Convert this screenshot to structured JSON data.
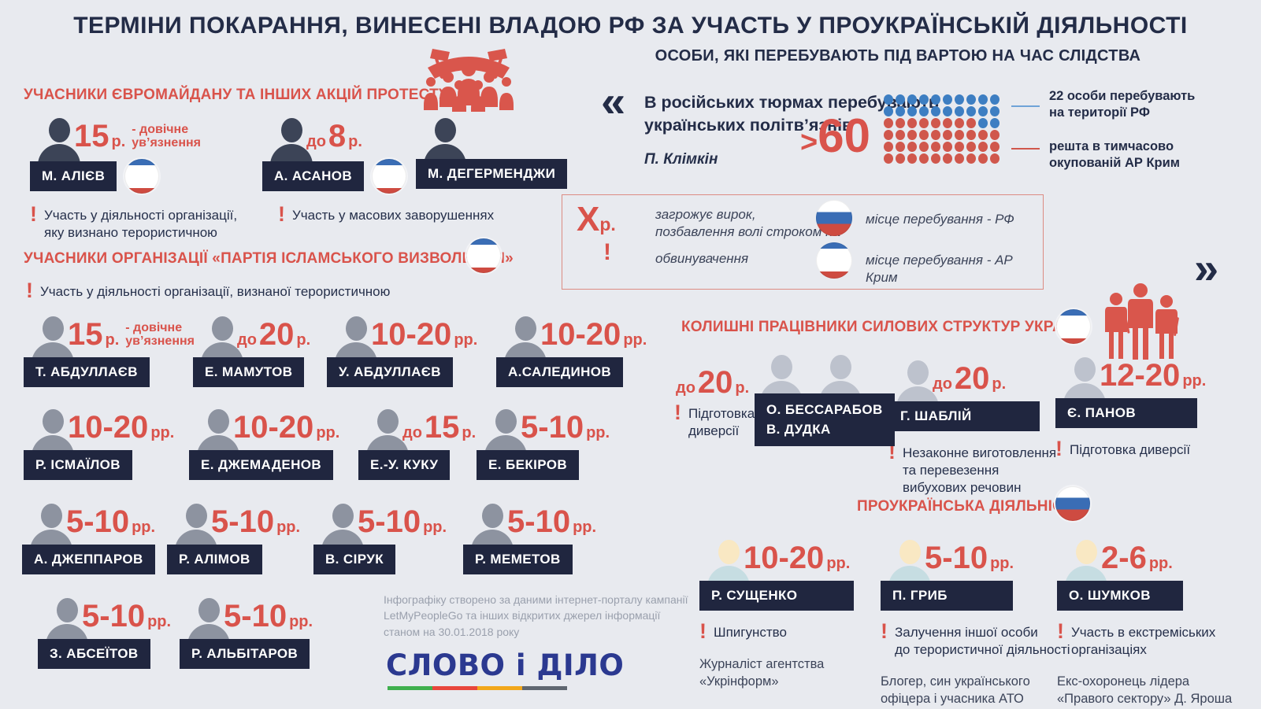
{
  "page": {
    "title": "ТЕРМІНИ ПОКАРАННЯ, ВИНЕСЕНІ ВЛАДОЮ РФ ЗА УЧАСТЬ У ПРОУКРАЇНСЬКІЙ ДІЯЛЬНОСТІ",
    "subtitle": "ОСОБИ, ЯКІ ПЕРЕБУВАЮТЬ ПІД ВАРТОЮ НА ЧАС СЛІДСТВА"
  },
  "colors": {
    "background": "#e8eaef",
    "navy": "#232c47",
    "plate": "#20263f",
    "red": "#d9534b",
    "dot_blue": "#3d7ec2",
    "dot_red": "#d0574c",
    "logo_blue": "#2b3990"
  },
  "quote": {
    "open_mark": "«",
    "close_mark": "»",
    "text": "В російських тюрмах перебувають\nукраїнських політв’язнів",
    "author": "П. Клімкін",
    "number_gt": ">",
    "number": "60",
    "waffle_rows": [
      "bbbbbbbbbb",
      "bbbbbbbbbb",
      "rrrrrrrrbb",
      "rrrrrrrrrr",
      "rrrrrrrrrr",
      "rrrrrrrrrr"
    ],
    "label_rf": "22 особи перебувають\nна території РФ",
    "label_crimea": "решта в тимчасово\nокупованій АР Крим"
  },
  "legend": {
    "term_symbol": "X",
    "term_unit": "р.",
    "term_text": "загрожує вирок,\nпозбавлення волі строком на",
    "excl": "!",
    "excl_text": "обвинувачення",
    "rf_text": "місце перебування - РФ",
    "crimea_text": "місце перебування - АР Крим"
  },
  "sections": {
    "euromaidan": {
      "heading": "УЧАСНИКИ ЄВРОМАЙДАНУ ТА ІНШИХ АКЦІЙ ПРОТЕСТУ",
      "people": [
        {
          "name": "М. АЛІЄВ",
          "term": {
            "value": "15",
            "unit": "р.",
            "suffix": "- довічне\nув’язнення"
          },
          "flag": "crimea",
          "note": "Участь у діяльності організації,\nяку визнано терористичною"
        },
        {
          "name": "А. АСАНОВ",
          "term": {
            "prefix": "до",
            "value": "8",
            "unit": "р."
          },
          "flag": "crimea",
          "note": "Участь у масових заворушеннях"
        },
        {
          "name": "М. ДЕГЕРМЕНДЖИ"
        }
      ]
    },
    "islamic": {
      "heading": "УЧАСНИКИ ОРГАНІЗАЦІЇ «ПАРТІЯ ІСЛАМСЬКОГО ВИЗВОЛЕННЯ»",
      "note": "Участь у діяльності організації, визнаної терористичною",
      "people": [
        {
          "name": "Т. АБДУЛЛАЄВ",
          "term": {
            "value": "15",
            "unit": "р.",
            "suffix": "- довічне\nув’язнення"
          }
        },
        {
          "name": "Е. МАМУТОВ",
          "term": {
            "prefix": "до",
            "value": "20",
            "unit": "р."
          }
        },
        {
          "name": "У. АБДУЛЛАЄВ",
          "term": {
            "value": "10-20",
            "unit": "рр."
          }
        },
        {
          "name": "А.САЛЕДИНОВ",
          "term": {
            "value": "10-20",
            "unit": "рр."
          }
        },
        {
          "name": "Р. ІСМАЇЛОВ",
          "term": {
            "value": "10-20",
            "unit": "рр."
          }
        },
        {
          "name": "Е. ДЖЕМАДЕНОВ",
          "term": {
            "value": "10-20",
            "unit": "рр."
          }
        },
        {
          "name": "Е.-У. КУКУ",
          "term": {
            "prefix": "до",
            "value": "15",
            "unit": "р."
          }
        },
        {
          "name": "Е. БЕКІРОВ",
          "term": {
            "value": "5-10",
            "unit": "рр."
          }
        },
        {
          "name": "А. ДЖЕППАРОВ",
          "term": {
            "value": "5-10",
            "unit": "рр."
          }
        },
        {
          "name": "Р. АЛІМОВ",
          "term": {
            "value": "5-10",
            "unit": "рр."
          }
        },
        {
          "name": "В. СІРУК",
          "term": {
            "value": "5-10",
            "unit": "рр."
          }
        },
        {
          "name": "Р. МЕМЕТОВ",
          "term": {
            "value": "5-10",
            "unit": "рр."
          }
        },
        {
          "name": "З. АБСЕЇТОВ",
          "term": {
            "value": "5-10",
            "unit": "рр."
          }
        },
        {
          "name": "Р. АЛЬБІТАРОВ",
          "term": {
            "value": "5-10",
            "unit": "рр."
          }
        }
      ]
    },
    "security": {
      "heading": "КОЛИШНІ ПРАЦІВНИКИ СИЛОВИХ СТРУКТУР УКРАЇНИ",
      "groups": [
        {
          "names": [
            "О. БЕССАРАБОВ",
            "В. ДУДКА"
          ],
          "term": {
            "prefix": "до",
            "value": "20",
            "unit": "р."
          },
          "note": "Підготовка\nдиверсії"
        },
        {
          "name": "Г. ШАБЛІЙ",
          "term": {
            "prefix": "до",
            "value": "20",
            "unit": "р."
          },
          "note": "Незаконне виготовлення\nта перевезення\nвибухових речовин"
        },
        {
          "name": "Є. ПАНОВ",
          "term": {
            "value": "12-20",
            "unit": "рр."
          },
          "note": "Підготовка диверсії"
        }
      ]
    },
    "pro_ukraine": {
      "heading": "ПРОУКРАЇНСЬКА ДІЯЛЬНІСТЬ",
      "people": [
        {
          "name": "Р. СУЩЕНКО",
          "term": {
            "value": "10-20",
            "unit": "рр."
          },
          "note": "Шпигунство",
          "desc": "Журналіст агентства\n«Укрінформ»"
        },
        {
          "name": "П. ГРИБ",
          "term": {
            "value": "5-10",
            "unit": "рр."
          },
          "note": "Залучення іншої особи\nдо терористичної діяльності",
          "desc": "Блогер, син українського\nофіцера і учасника АТО"
        },
        {
          "name": "О. ШУМКОВ",
          "term": {
            "value": "2-6",
            "unit": "рр."
          },
          "note": "Участь в екстреміських\nорганізаціях",
          "desc": "Екс-охоронець лідера\n«Правого сектору» Д. Яроша"
        }
      ]
    }
  },
  "footer": {
    "credit": "Інфографіку створено за даними інтернет-порталу кампанії\nLetMyPeopleGo та інших відкритих джерел інформації\nстаном на 30.01.2018 року",
    "logo": "СЛОВО і ДІЛО"
  },
  "chart_data": {
    "type": "pie",
    "title": "Українські політв’язні в російських тюрмах (>60)",
    "labels": [
      "перебувають на території РФ",
      "в тимчасово окупованій АР Крим"
    ],
    "values": [
      22,
      38
    ],
    "colors": [
      "#3d7ec2",
      "#d0574c"
    ]
  }
}
